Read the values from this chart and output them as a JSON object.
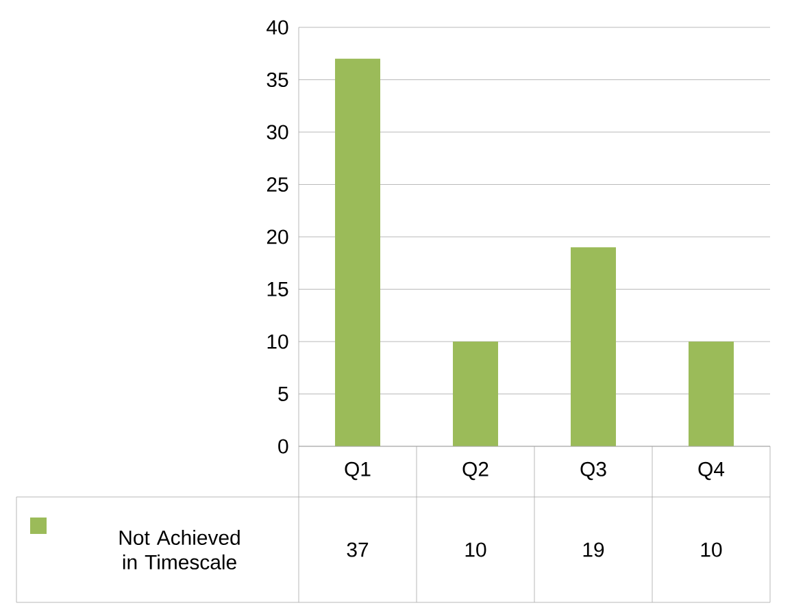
{
  "chart_data": {
    "type": "bar",
    "categories": [
      "Q1",
      "Q2",
      "Q3",
      "Q4"
    ],
    "series": [
      {
        "name": "Not Achieved in Timescale",
        "color": "#9bbb59",
        "values": [
          37,
          10,
          19,
          10
        ]
      }
    ],
    "ylim": [
      0,
      40
    ],
    "yticks": [
      0,
      5,
      10,
      15,
      20,
      25,
      30,
      35,
      40
    ],
    "grid": "y",
    "legend": "bottom left",
    "data_labels": true
  }
}
